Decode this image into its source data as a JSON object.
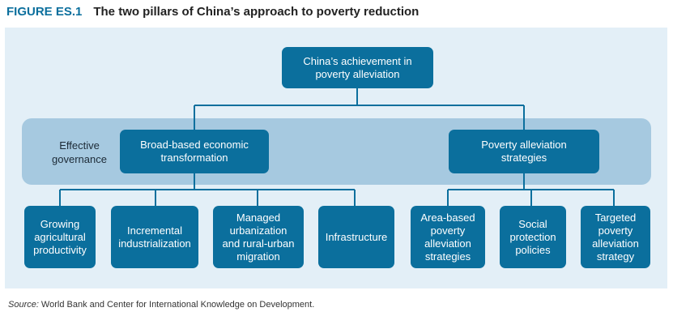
{
  "figure": {
    "label": "FIGURE ES.1",
    "title": "The two pillars of China’s approach to poverty reduction"
  },
  "diagram": {
    "root": "China’s achievement in\npoverty alleviation",
    "band_label": "Effective\ngovernance",
    "pillars": [
      {
        "label": "Broad-based economic\ntransformation",
        "children": [
          "Growing\nagricultural\nproductivity",
          "Incremental\nindustrialization",
          "Managed\nurbanization\nand rural-urban\nmigration",
          "Infrastructure"
        ]
      },
      {
        "label": "Poverty alleviation\nstrategies",
        "children": [
          "Area-based\npoverty\nalleviation\nstrategies",
          "Social\nprotection\npolicies",
          "Targeted\npoverty\nalleviation\nstrategy"
        ]
      }
    ]
  },
  "colors": {
    "box_fill": "#0b6f9d",
    "box_text": "#ffffff",
    "band_fill": "#a6c9e0",
    "panel_fill": "#e3eff7",
    "label_color": "#0b6f9d"
  },
  "source": {
    "label": "Source:",
    "text": "World Bank and Center for International Knowledge on Development."
  }
}
